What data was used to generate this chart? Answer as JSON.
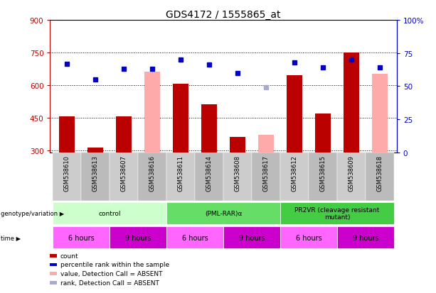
{
  "title": "GDS4172 / 1555865_at",
  "samples": [
    "GSM538610",
    "GSM538613",
    "GSM538607",
    "GSM538616",
    "GSM538611",
    "GSM538614",
    "GSM538608",
    "GSM538617",
    "GSM538612",
    "GSM538615",
    "GSM538609",
    "GSM538618"
  ],
  "bar_values": [
    455,
    310,
    455,
    null,
    605,
    510,
    360,
    null,
    645,
    470,
    750,
    null
  ],
  "bar_absent_values": [
    null,
    null,
    null,
    660,
    null,
    null,
    null,
    370,
    null,
    null,
    null,
    650
  ],
  "dot_values": [
    67,
    55,
    63,
    63,
    70,
    66,
    60,
    49,
    68,
    64,
    70,
    64
  ],
  "dot_absent": [
    false,
    false,
    false,
    false,
    false,
    false,
    false,
    true,
    false,
    false,
    false,
    false
  ],
  "ylim_left": [
    290,
    900
  ],
  "ylim_right": [
    0,
    100
  ],
  "yticks_left": [
    300,
    450,
    600,
    750,
    900
  ],
  "yticks_right": [
    0,
    25,
    50,
    75,
    100
  ],
  "bar_color": "#bb0000",
  "bar_absent_color": "#ffaaaa",
  "dot_color": "#0000cc",
  "dot_absent_color": "#aaaacc",
  "background_color": "#ffffff",
  "genotype_groups": [
    {
      "label": "control",
      "span": [
        0,
        4
      ],
      "color": "#ccffcc"
    },
    {
      "label": "(PML-RAR)α",
      "span": [
        4,
        8
      ],
      "color": "#66dd66"
    },
    {
      "label": "PR2VR (cleavage resistant\nmutant)",
      "span": [
        8,
        12
      ],
      "color": "#44cc44"
    }
  ],
  "time_groups": [
    {
      "label": "6 hours",
      "span": [
        0,
        2
      ],
      "color": "#ff66ff"
    },
    {
      "label": "9 hours",
      "span": [
        2,
        4
      ],
      "color": "#cc00cc"
    },
    {
      "label": "6 hours",
      "span": [
        4,
        6
      ],
      "color": "#ff66ff"
    },
    {
      "label": "9 hours",
      "span": [
        6,
        8
      ],
      "color": "#cc00cc"
    },
    {
      "label": "6 hours",
      "span": [
        8,
        10
      ],
      "color": "#ff66ff"
    },
    {
      "label": "9 hours",
      "span": [
        10,
        12
      ],
      "color": "#cc00cc"
    }
  ],
  "legend_entries": [
    {
      "label": "count",
      "color": "#bb0000"
    },
    {
      "label": "percentile rank within the sample",
      "color": "#0000cc"
    },
    {
      "label": "value, Detection Call = ABSENT",
      "color": "#ffaaaa"
    },
    {
      "label": "rank, Detection Call = ABSENT",
      "color": "#aaaacc"
    }
  ],
  "ylabel_left_color": "#bb0000",
  "ylabel_right_color": "#0000bb",
  "tick_label_bg": "#cccccc"
}
